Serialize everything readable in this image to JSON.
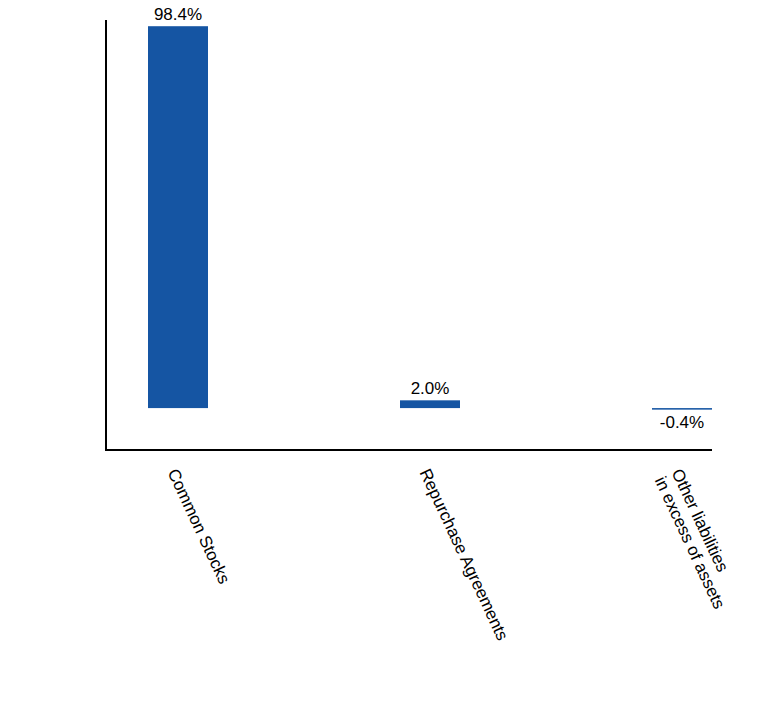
{
  "chart_data": {
    "type": "bar",
    "categories": [
      "Common Stocks",
      "Repurchase Agreements",
      "Other liabilities in excess of assets"
    ],
    "values": [
      98.4,
      2.0,
      -0.4
    ],
    "value_labels": [
      "98.4%",
      "2.0%",
      "-0.4%"
    ],
    "color": "#1555a3",
    "ylim": [
      -10.8,
      100
    ],
    "yticks": [],
    "grid": false,
    "data_labels": true,
    "tick_labels": "x"
  }
}
